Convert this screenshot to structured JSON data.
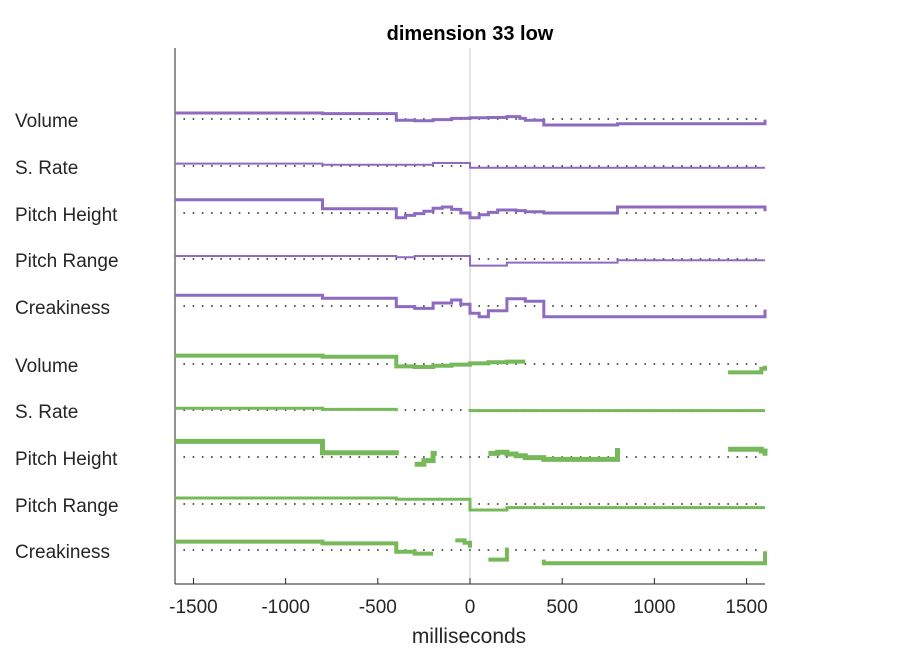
{
  "chart_data": {
    "type": "line",
    "title": "dimension 33 low",
    "xlabel": "milliseconds",
    "xlim": [
      -1600,
      1600
    ],
    "xticks": [
      -1500,
      -1000,
      -500,
      0,
      500,
      1000,
      1500
    ],
    "zero_line": 0,
    "baseline_dots": true,
    "colors": {
      "purple": "#8e6bbf",
      "green": "#77b95a",
      "axis": "#262626",
      "zero": "#c8c8c8"
    },
    "rows": [
      {
        "label": "Volume",
        "color": "#8e6bbf",
        "width": 3,
        "points": [
          [
            -1600,
            1.0
          ],
          [
            -800,
            1.0
          ],
          [
            -800,
            0.9
          ],
          [
            -400,
            0.9
          ],
          [
            -400,
            -0.2
          ],
          [
            -300,
            -0.2
          ],
          [
            -300,
            -0.3
          ],
          [
            -200,
            -0.3
          ],
          [
            -200,
            -0.1
          ],
          [
            -100,
            -0.1
          ],
          [
            -100,
            0.1
          ],
          [
            0,
            0.1
          ],
          [
            0,
            0.2
          ],
          [
            100,
            0.2
          ],
          [
            100,
            0.25
          ],
          [
            200,
            0.25
          ],
          [
            200,
            0.4
          ],
          [
            270,
            0.4
          ],
          [
            270,
            0.1
          ],
          [
            300,
            0.1
          ],
          [
            300,
            -0.2
          ],
          [
            400,
            -0.2
          ],
          [
            400,
            -1.0
          ],
          [
            800,
            -1.0
          ],
          [
            800,
            -0.8
          ],
          [
            1600,
            -0.8
          ],
          [
            1600,
            -0.1
          ]
        ]
      },
      {
        "label": "S. Rate",
        "color": "#8e6bbf",
        "width": 2,
        "points": [
          [
            -1600,
            0.4
          ],
          [
            -800,
            0.4
          ],
          [
            -800,
            0.2
          ],
          [
            -200,
            0.2
          ],
          [
            -200,
            0.5
          ],
          [
            0,
            0.5
          ],
          [
            0,
            -0.3
          ],
          [
            1600,
            -0.3
          ]
        ]
      },
      {
        "label": "Pitch Height",
        "color": "#8e6bbf",
        "width": 3,
        "points": [
          [
            -1600,
            2.2
          ],
          [
            -800,
            2.2
          ],
          [
            -800,
            0.7
          ],
          [
            -400,
            0.7
          ],
          [
            -400,
            -0.8
          ],
          [
            -350,
            -0.8
          ],
          [
            -350,
            -0.4
          ],
          [
            -300,
            -0.4
          ],
          [
            -300,
            -0.1
          ],
          [
            -250,
            -0.1
          ],
          [
            -250,
            0.3
          ],
          [
            -200,
            0.3
          ],
          [
            -200,
            0.8
          ],
          [
            -150,
            0.8
          ],
          [
            -150,
            1.0
          ],
          [
            -100,
            1.0
          ],
          [
            -100,
            0.6
          ],
          [
            -50,
            0.6
          ],
          [
            -50,
            0.0
          ],
          [
            0,
            0.0
          ],
          [
            0,
            -0.8
          ],
          [
            50,
            -0.8
          ],
          [
            50,
            -0.3
          ],
          [
            100,
            -0.3
          ],
          [
            100,
            0.1
          ],
          [
            150,
            0.1
          ],
          [
            150,
            0.5
          ],
          [
            250,
            0.5
          ],
          [
            250,
            0.4
          ],
          [
            300,
            0.4
          ],
          [
            300,
            0.2
          ],
          [
            400,
            0.2
          ],
          [
            400,
            0.0
          ],
          [
            800,
            0.0
          ],
          [
            800,
            1.0
          ],
          [
            1600,
            1.0
          ],
          [
            1600,
            0.3
          ]
        ]
      },
      {
        "label": "Pitch Range",
        "color": "#8e6bbf",
        "width": 2,
        "points": [
          [
            -1600,
            0.5
          ],
          [
            -400,
            0.5
          ],
          [
            -400,
            0.3
          ],
          [
            -300,
            0.3
          ],
          [
            -300,
            0.5
          ],
          [
            0,
            0.5
          ],
          [
            0,
            -1.1
          ],
          [
            200,
            -1.1
          ],
          [
            200,
            -0.6
          ],
          [
            800,
            -0.6
          ],
          [
            800,
            -0.2
          ],
          [
            1600,
            -0.2
          ]
        ]
      },
      {
        "label": "Creakiness",
        "color": "#8e6bbf",
        "width": 3,
        "points": [
          [
            -1600,
            1.8
          ],
          [
            -800,
            1.8
          ],
          [
            -800,
            1.3
          ],
          [
            -400,
            1.3
          ],
          [
            -400,
            -0.1
          ],
          [
            -300,
            -0.1
          ],
          [
            -300,
            -0.4
          ],
          [
            -200,
            -0.4
          ],
          [
            -200,
            0.5
          ],
          [
            -100,
            0.5
          ],
          [
            -100,
            1.0
          ],
          [
            -50,
            1.0
          ],
          [
            -50,
            0.3
          ],
          [
            0,
            0.3
          ],
          [
            0,
            -1.2
          ],
          [
            50,
            -1.2
          ],
          [
            50,
            -1.8
          ],
          [
            100,
            -1.8
          ],
          [
            100,
            -0.8
          ],
          [
            200,
            -0.8
          ],
          [
            200,
            1.2
          ],
          [
            300,
            1.2
          ],
          [
            300,
            0.8
          ],
          [
            400,
            0.8
          ],
          [
            400,
            -1.8
          ],
          [
            1600,
            -1.8
          ],
          [
            1600,
            -0.6
          ]
        ]
      },
      {
        "label": "Volume",
        "color": "#77b95a",
        "width": 4,
        "segments": [
          [
            [
              -1600,
              1.4
            ],
            [
              -800,
              1.4
            ],
            [
              -800,
              1.2
            ],
            [
              -400,
              1.2
            ],
            [
              -400,
              -0.4
            ],
            [
              -300,
              -0.4
            ],
            [
              -300,
              -0.5
            ],
            [
              -200,
              -0.5
            ],
            [
              -200,
              -0.3
            ],
            [
              -100,
              -0.3
            ],
            [
              -100,
              -0.1
            ],
            [
              0,
              -0.1
            ],
            [
              0,
              0.1
            ],
            [
              100,
              0.1
            ],
            [
              100,
              0.3
            ],
            [
              200,
              0.3
            ],
            [
              200,
              0.4
            ],
            [
              300,
              0.4
            ]
          ],
          [
            [
              1400,
              -1.4
            ],
            [
              1580,
              -1.4
            ],
            [
              1580,
              -0.8
            ],
            [
              1600,
              -0.8
            ],
            [
              1600,
              -0.3
            ]
          ]
        ]
      },
      {
        "label": "S. Rate",
        "color": "#77b95a",
        "width": 3,
        "segments": [
          [
            [
              -1600,
              0.3
            ],
            [
              -800,
              0.3
            ],
            [
              -800,
              0.1
            ],
            [
              -400,
              0.1
            ],
            [
              -400,
              -0.2
            ]
          ],
          [
            [
              0,
              -0.3
            ],
            [
              0,
              -0.1
            ],
            [
              1600,
              -0.1
            ]
          ]
        ]
      },
      {
        "label": "Pitch Height",
        "color": "#77b95a",
        "width": 5,
        "segments": [
          [
            [
              -1600,
              2.6
            ],
            [
              -800,
              2.6
            ],
            [
              -800,
              0.7
            ],
            [
              -400,
              0.7
            ],
            [
              -400,
              0.3
            ]
          ],
          [
            [
              -300,
              -1.2
            ],
            [
              -250,
              -1.2
            ],
            [
              -250,
              -0.6
            ],
            [
              -200,
              -0.6
            ],
            [
              -200,
              0.6
            ],
            [
              -180,
              0.6
            ]
          ],
          [
            [
              100,
              0.6
            ],
            [
              150,
              0.6
            ],
            [
              150,
              0.8
            ],
            [
              200,
              0.8
            ],
            [
              200,
              0.5
            ],
            [
              250,
              0.5
            ],
            [
              250,
              0.2
            ],
            [
              300,
              0.2
            ],
            [
              300,
              -0.1
            ],
            [
              400,
              -0.1
            ],
            [
              400,
              -0.4
            ],
            [
              800,
              -0.4
            ],
            [
              800,
              1.5
            ]
          ],
          [
            [
              1400,
              1.3
            ],
            [
              1580,
              1.3
            ],
            [
              1580,
              1.0
            ],
            [
              1600,
              1.0
            ],
            [
              1600,
              0.2
            ]
          ]
        ]
      },
      {
        "label": "Pitch Range",
        "color": "#77b95a",
        "width": 3,
        "segments": [
          [
            [
              -1600,
              1.0
            ],
            [
              -400,
              1.0
            ],
            [
              -400,
              0.8
            ],
            [
              0,
              0.8
            ],
            [
              0,
              -1.0
            ],
            [
              200,
              -1.0
            ],
            [
              200,
              -0.6
            ],
            [
              1600,
              -0.6
            ]
          ]
        ]
      },
      {
        "label": "Creakiness",
        "color": "#77b95a",
        "width": 4,
        "segments": [
          [
            [
              -1600,
              1.4
            ],
            [
              -800,
              1.4
            ],
            [
              -800,
              1.1
            ],
            [
              -400,
              1.1
            ],
            [
              -400,
              -0.3
            ],
            [
              -300,
              -0.3
            ],
            [
              -300,
              -0.6
            ],
            [
              -200,
              -0.6
            ]
          ],
          [
            [
              -80,
              1.6
            ],
            [
              -30,
              1.6
            ],
            [
              -30,
              1.2
            ],
            [
              0,
              1.2
            ],
            [
              0,
              0.4
            ]
          ],
          [
            [
              100,
              -1.6
            ],
            [
              200,
              -1.6
            ],
            [
              200,
              0.4
            ]
          ],
          [
            [
              400,
              -1.6
            ],
            [
              400,
              -2.2
            ],
            [
              1600,
              -2.2
            ],
            [
              1600,
              -0.2
            ]
          ]
        ]
      }
    ]
  }
}
